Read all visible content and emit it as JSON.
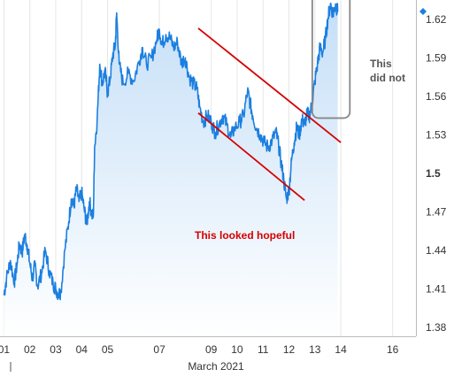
{
  "chart_data": {
    "type": "area",
    "title": "",
    "xlabel": "March 2021",
    "ylabel": "",
    "x_ticks": [
      "01",
      "02",
      "03",
      "04",
      "05",
      "07",
      "09",
      "10",
      "11",
      "12",
      "13",
      "14",
      "16"
    ],
    "x_tick_days": [
      1,
      2,
      3,
      4,
      5,
      7,
      9,
      10,
      11,
      12,
      13,
      14,
      16
    ],
    "x_range_days": [
      0.85,
      16.9
    ],
    "y_ticks": [
      "1.38",
      "1.41",
      "1.44",
      "1.47",
      "1.5",
      "1.53",
      "1.56",
      "1.59",
      "1.62"
    ],
    "y_tick_values": [
      1.38,
      1.41,
      1.44,
      1.47,
      1.5,
      1.53,
      1.56,
      1.59,
      1.62
    ],
    "y_bold_tick": "1.5",
    "ylim": [
      1.373,
      1.635
    ],
    "grid": "vertical",
    "series": [
      {
        "points": [
          [
            1.0,
            1.405
          ],
          [
            1.1,
            1.418
          ],
          [
            1.25,
            1.432
          ],
          [
            1.4,
            1.415
          ],
          [
            1.5,
            1.428
          ],
          [
            1.6,
            1.445
          ],
          [
            1.7,
            1.438
          ],
          [
            1.8,
            1.452
          ],
          [
            1.9,
            1.444
          ],
          [
            2.0,
            1.43
          ],
          [
            2.1,
            1.418
          ],
          [
            2.2,
            1.428
          ],
          [
            2.3,
            1.412
          ],
          [
            2.45,
            1.422
          ],
          [
            2.6,
            1.44
          ],
          [
            2.75,
            1.424
          ],
          [
            2.9,
            1.414
          ],
          [
            3.0,
            1.41
          ],
          [
            3.1,
            1.406
          ],
          [
            3.2,
            1.408
          ],
          [
            3.35,
            1.44
          ],
          [
            3.5,
            1.462
          ],
          [
            3.6,
            1.48
          ],
          [
            3.7,
            1.474
          ],
          [
            3.8,
            1.488
          ],
          [
            3.9,
            1.478
          ],
          [
            4.0,
            1.485
          ],
          [
            4.1,
            1.472
          ],
          [
            4.2,
            1.46
          ],
          [
            4.3,
            1.478
          ],
          [
            4.4,
            1.468
          ],
          [
            4.45,
            1.466
          ],
          [
            4.5,
            1.52
          ],
          [
            4.6,
            1.542
          ],
          [
            4.7,
            1.585
          ],
          [
            4.8,
            1.57
          ],
          [
            4.9,
            1.58
          ],
          [
            5.0,
            1.562
          ],
          [
            5.1,
            1.574
          ],
          [
            5.2,
            1.592
          ],
          [
            5.3,
            1.6
          ],
          [
            5.35,
            1.625
          ],
          [
            5.45,
            1.585
          ],
          [
            5.6,
            1.57
          ],
          [
            5.8,
            1.578
          ],
          [
            6.0,
            1.572
          ],
          [
            6.2,
            1.586
          ],
          [
            6.35,
            1.598
          ],
          [
            6.5,
            1.585
          ],
          [
            6.7,
            1.59
          ],
          [
            6.9,
            1.604
          ],
          [
            7.0,
            1.612
          ],
          [
            7.1,
            1.6
          ],
          [
            7.25,
            1.608
          ],
          [
            7.4,
            1.606
          ],
          [
            7.55,
            1.598
          ],
          [
            7.7,
            1.602
          ],
          [
            7.85,
            1.586
          ],
          [
            8.0,
            1.59
          ],
          [
            8.15,
            1.575
          ],
          [
            8.3,
            1.57
          ],
          [
            8.45,
            1.566
          ],
          [
            8.55,
            1.552
          ],
          [
            8.7,
            1.54
          ],
          [
            8.85,
            1.545
          ],
          [
            9.0,
            1.54
          ],
          [
            9.15,
            1.532
          ],
          [
            9.3,
            1.538
          ],
          [
            9.45,
            1.545
          ],
          [
            9.6,
            1.538
          ],
          [
            9.75,
            1.528
          ],
          [
            9.9,
            1.535
          ],
          [
            10.1,
            1.54
          ],
          [
            10.25,
            1.545
          ],
          [
            10.4,
            1.564
          ],
          [
            10.5,
            1.555
          ],
          [
            10.6,
            1.545
          ],
          [
            10.75,
            1.535
          ],
          [
            10.9,
            1.53
          ],
          [
            11.05,
            1.524
          ],
          [
            11.2,
            1.52
          ],
          [
            11.35,
            1.526
          ],
          [
            11.5,
            1.532
          ],
          [
            11.6,
            1.522
          ],
          [
            11.7,
            1.508
          ],
          [
            11.8,
            1.495
          ],
          [
            11.9,
            1.48
          ],
          [
            12.0,
            1.486
          ],
          [
            12.1,
            1.51
          ],
          [
            12.2,
            1.524
          ],
          [
            12.3,
            1.536
          ],
          [
            12.4,
            1.53
          ],
          [
            12.5,
            1.542
          ],
          [
            12.6,
            1.538
          ],
          [
            12.7,
            1.546
          ],
          [
            12.8,
            1.545
          ],
          [
            12.9,
            1.556
          ],
          [
            13.0,
            1.572
          ],
          [
            13.1,
            1.585
          ],
          [
            13.2,
            1.598
          ],
          [
            13.3,
            1.594
          ],
          [
            13.4,
            1.604
          ],
          [
            13.5,
            1.62
          ],
          [
            13.6,
            1.632
          ],
          [
            13.7,
            1.624
          ],
          [
            13.8,
            1.632
          ],
          [
            13.88,
            1.626
          ]
        ]
      }
    ],
    "last_value_marker": 1.626,
    "colors": {
      "line": "#1c7fe0",
      "area_top": "#c5dff7",
      "area_bottom": "#ffffff",
      "grid": "#e6e6e6",
      "axis": "#bbbbbb",
      "channel": "#d40000",
      "box": "#888888",
      "marker": "#1c7fe0"
    },
    "channel_lines": [
      {
        "start": [
          8.5,
          1.613
        ],
        "end": [
          14.0,
          1.524
        ]
      },
      {
        "start": [
          8.5,
          1.547
        ],
        "end": [
          12.6,
          1.479
        ]
      }
    ],
    "highlight_box": {
      "x_range": [
        12.9,
        14.35
      ],
      "y_range": [
        1.543,
        1.641
      ]
    },
    "annotations": {
      "hopeful": "This looked hopeful",
      "did_not_line1": "This",
      "did_not_line2": "did not"
    }
  }
}
